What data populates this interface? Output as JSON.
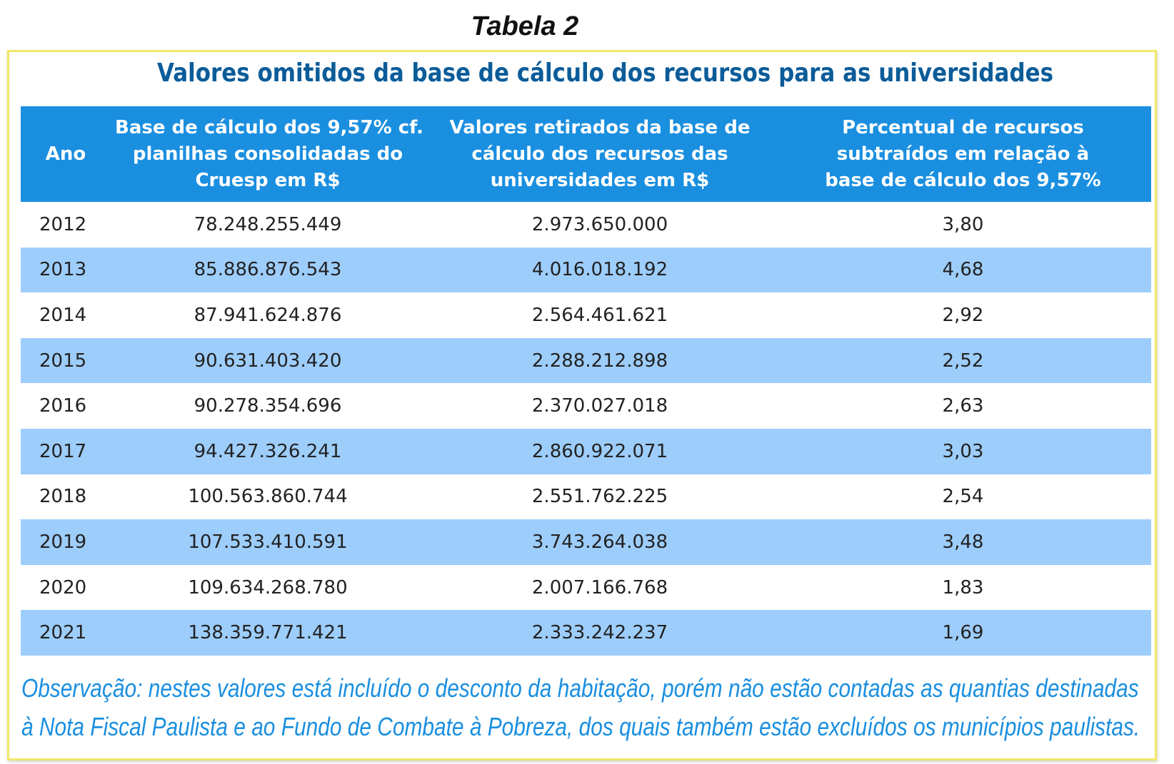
{
  "label": "Tabela 2",
  "title": "Valores omitidos da base de cálculo dos recursos para as universidades",
  "table": {
    "headers": [
      {
        "lines": [
          "Ano"
        ]
      },
      {
        "lines": [
          "Base de cálculo dos 9,57% cf.",
          "planilhas consolidadas do",
          "Cruesp em R$"
        ]
      },
      {
        "lines": [
          "Valores retirados da base de",
          "cálculo dos recursos das",
          "universidades em R$"
        ]
      },
      {
        "lines": [
          "Percentual de recursos",
          "subtraídos em relação à",
          "base de cálculo dos 9,57%"
        ]
      }
    ],
    "rows": [
      [
        "2012",
        "78.248.255.449",
        "2.973.650.000",
        "3,80"
      ],
      [
        "2013",
        "85.886.876.543",
        "4.016.018.192",
        "4,68"
      ],
      [
        "2014",
        "87.941.624.876",
        "2.564.461.621",
        "2,92"
      ],
      [
        "2015",
        "90.631.403.420",
        "2.288.212.898",
        "2,52"
      ],
      [
        "2016",
        "90.278.354.696",
        "2.370.027.018",
        "2,63"
      ],
      [
        "2017",
        "94.427.326.241",
        "2.860.922.071",
        "3,03"
      ],
      [
        "2018",
        "100.563.860.744",
        "2.551.762.225",
        "2,54"
      ],
      [
        "2019",
        "107.533.410.591",
        "3.743.264.038",
        "3,48"
      ],
      [
        "2020",
        "109.634.268.780",
        "2.007.166.768",
        "1,83"
      ],
      [
        "2021",
        "138.359.771.421",
        "2.333.242.237",
        "1,69"
      ]
    ]
  },
  "observation": {
    "lines": [
      "Observação: nestes valores está incluído o desconto da habitação, porém não estão contadas as quantias destinadas",
      "à Nota Fiscal Paulista e ao Fundo de Combate à Pobreza, dos quais também estão excluídos os municípios paulistas."
    ]
  },
  "colors": {
    "header_bg": "#1a8fe0",
    "alt_row_bg": "#9dcdfb",
    "title_color": "#0b5c99",
    "observation_color": "#1a8fe0",
    "frame_border": "#f2e86a"
  }
}
